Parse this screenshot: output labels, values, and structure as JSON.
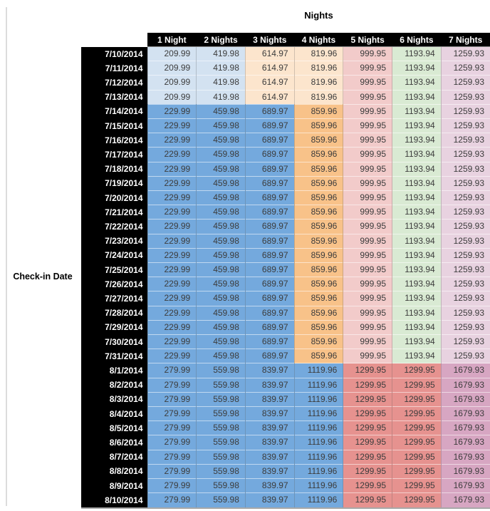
{
  "chart_data": {
    "type": "table",
    "title": "Nights",
    "row_axis_label": "Check-in Date",
    "columns": [
      "1 Night",
      "2 Nights",
      "3 Nights",
      "4 Nights",
      "5 Nights",
      "6 Nights",
      "7 Nights"
    ],
    "colors": {
      "header_bg": "#000000",
      "header_text": "#ffffff",
      "cell_text": "#3c3c3c",
      "light_blue": "#d3e2f1",
      "light_orange": "#fce5cd",
      "light_red": "#f2cbca",
      "light_green": "#d9ead3",
      "light_magenta": "#e8d2e0",
      "medium_blue": "#74a9dd",
      "medium_orange": "#f8c289",
      "medium_red": "#e6928f",
      "medium_magenta": "#d7a6c2"
    },
    "band_patterns": {
      "early_july": [
        "light_blue",
        "light_blue",
        "light_orange",
        "light_orange",
        "light_red",
        "light_green",
        "light_magenta"
      ],
      "mid_july": [
        "medium_blue",
        "medium_blue",
        "medium_blue",
        "medium_orange",
        "light_red",
        "light_green",
        "light_magenta"
      ],
      "august": [
        "medium_blue",
        "medium_blue",
        "medium_blue",
        "medium_blue",
        "medium_red",
        "medium_red",
        "medium_magenta"
      ]
    },
    "rows": [
      {
        "date": "7/10/2014",
        "band": "early_july",
        "values": [
          "209.99",
          "419.98",
          "614.97",
          "819.96",
          "999.95",
          "1193.94",
          "1259.93"
        ]
      },
      {
        "date": "7/11/2014",
        "band": "early_july",
        "values": [
          "209.99",
          "419.98",
          "614.97",
          "819.96",
          "999.95",
          "1193.94",
          "1259.93"
        ]
      },
      {
        "date": "7/12/2014",
        "band": "early_july",
        "values": [
          "209.99",
          "419.98",
          "614.97",
          "819.96",
          "999.95",
          "1193.94",
          "1259.93"
        ]
      },
      {
        "date": "7/13/2014",
        "band": "early_july",
        "values": [
          "209.99",
          "419.98",
          "614.97",
          "819.96",
          "999.95",
          "1193.94",
          "1259.93"
        ]
      },
      {
        "date": "7/14/2014",
        "band": "mid_july",
        "values": [
          "229.99",
          "459.98",
          "689.97",
          "859.96",
          "999.95",
          "1193.94",
          "1259.93"
        ]
      },
      {
        "date": "7/15/2014",
        "band": "mid_july",
        "values": [
          "229.99",
          "459.98",
          "689.97",
          "859.96",
          "999.95",
          "1193.94",
          "1259.93"
        ]
      },
      {
        "date": "7/16/2014",
        "band": "mid_july",
        "values": [
          "229.99",
          "459.98",
          "689.97",
          "859.96",
          "999.95",
          "1193.94",
          "1259.93"
        ]
      },
      {
        "date": "7/17/2014",
        "band": "mid_july",
        "values": [
          "229.99",
          "459.98",
          "689.97",
          "859.96",
          "999.95",
          "1193.94",
          "1259.93"
        ]
      },
      {
        "date": "7/18/2014",
        "band": "mid_july",
        "values": [
          "229.99",
          "459.98",
          "689.97",
          "859.96",
          "999.95",
          "1193.94",
          "1259.93"
        ]
      },
      {
        "date": "7/19/2014",
        "band": "mid_july",
        "values": [
          "229.99",
          "459.98",
          "689.97",
          "859.96",
          "999.95",
          "1193.94",
          "1259.93"
        ]
      },
      {
        "date": "7/20/2014",
        "band": "mid_july",
        "values": [
          "229.99",
          "459.98",
          "689.97",
          "859.96",
          "999.95",
          "1193.94",
          "1259.93"
        ]
      },
      {
        "date": "7/21/2014",
        "band": "mid_july",
        "values": [
          "229.99",
          "459.98",
          "689.97",
          "859.96",
          "999.95",
          "1193.94",
          "1259.93"
        ]
      },
      {
        "date": "7/22/2014",
        "band": "mid_july",
        "values": [
          "229.99",
          "459.98",
          "689.97",
          "859.96",
          "999.95",
          "1193.94",
          "1259.93"
        ]
      },
      {
        "date": "7/23/2014",
        "band": "mid_july",
        "values": [
          "229.99",
          "459.98",
          "689.97",
          "859.96",
          "999.95",
          "1193.94",
          "1259.93"
        ]
      },
      {
        "date": "7/24/2014",
        "band": "mid_july",
        "values": [
          "229.99",
          "459.98",
          "689.97",
          "859.96",
          "999.95",
          "1193.94",
          "1259.93"
        ]
      },
      {
        "date": "7/25/2014",
        "band": "mid_july",
        "values": [
          "229.99",
          "459.98",
          "689.97",
          "859.96",
          "999.95",
          "1193.94",
          "1259.93"
        ]
      },
      {
        "date": "7/26/2014",
        "band": "mid_july",
        "values": [
          "229.99",
          "459.98",
          "689.97",
          "859.96",
          "999.95",
          "1193.94",
          "1259.93"
        ]
      },
      {
        "date": "7/27/2014",
        "band": "mid_july",
        "values": [
          "229.99",
          "459.98",
          "689.97",
          "859.96",
          "999.95",
          "1193.94",
          "1259.93"
        ]
      },
      {
        "date": "7/28/2014",
        "band": "mid_july",
        "values": [
          "229.99",
          "459.98",
          "689.97",
          "859.96",
          "999.95",
          "1193.94",
          "1259.93"
        ]
      },
      {
        "date": "7/29/2014",
        "band": "mid_july",
        "values": [
          "229.99",
          "459.98",
          "689.97",
          "859.96",
          "999.95",
          "1193.94",
          "1259.93"
        ]
      },
      {
        "date": "7/30/2014",
        "band": "mid_july",
        "values": [
          "229.99",
          "459.98",
          "689.97",
          "859.96",
          "999.95",
          "1193.94",
          "1259.93"
        ]
      },
      {
        "date": "7/31/2014",
        "band": "mid_july",
        "values": [
          "229.99",
          "459.98",
          "689.97",
          "859.96",
          "999.95",
          "1193.94",
          "1259.93"
        ]
      },
      {
        "date": "8/1/2014",
        "band": "august",
        "values": [
          "279.99",
          "559.98",
          "839.97",
          "1119.96",
          "1299.95",
          "1299.95",
          "1679.93"
        ]
      },
      {
        "date": "8/2/2014",
        "band": "august",
        "values": [
          "279.99",
          "559.98",
          "839.97",
          "1119.96",
          "1299.95",
          "1299.95",
          "1679.93"
        ]
      },
      {
        "date": "8/3/2014",
        "band": "august",
        "values": [
          "279.99",
          "559.98",
          "839.97",
          "1119.96",
          "1299.95",
          "1299.95",
          "1679.93"
        ]
      },
      {
        "date": "8/4/2014",
        "band": "august",
        "values": [
          "279.99",
          "559.98",
          "839.97",
          "1119.96",
          "1299.95",
          "1299.95",
          "1679.93"
        ]
      },
      {
        "date": "8/5/2014",
        "band": "august",
        "values": [
          "279.99",
          "559.98",
          "839.97",
          "1119.96",
          "1299.95",
          "1299.95",
          "1679.93"
        ]
      },
      {
        "date": "8/6/2014",
        "band": "august",
        "values": [
          "279.99",
          "559.98",
          "839.97",
          "1119.96",
          "1299.95",
          "1299.95",
          "1679.93"
        ]
      },
      {
        "date": "8/7/2014",
        "band": "august",
        "values": [
          "279.99",
          "559.98",
          "839.97",
          "1119.96",
          "1299.95",
          "1299.95",
          "1679.93"
        ]
      },
      {
        "date": "8/8/2014",
        "band": "august",
        "values": [
          "279.99",
          "559.98",
          "839.97",
          "1119.96",
          "1299.95",
          "1299.95",
          "1679.93"
        ]
      },
      {
        "date": "8/9/2014",
        "band": "august",
        "values": [
          "279.99",
          "559.98",
          "839.97",
          "1119.96",
          "1299.95",
          "1299.95",
          "1679.93"
        ]
      },
      {
        "date": "8/10/2014",
        "band": "august",
        "values": [
          "279.99",
          "559.98",
          "839.97",
          "1119.96",
          "1299.95",
          "1299.95",
          "1679.93"
        ]
      }
    ]
  }
}
